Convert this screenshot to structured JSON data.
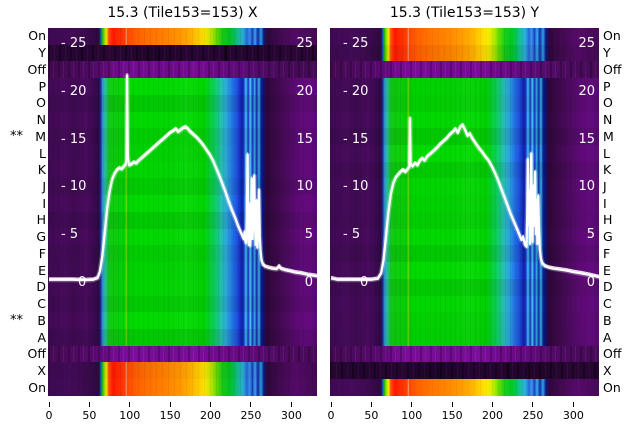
{
  "figure": {
    "background": "#ffffff"
  },
  "panels": [
    {
      "title": "15.3 (Tile153=153) X",
      "row_types": [
        "bright",
        "dark",
        "off",
        "body",
        "body",
        "body",
        "body",
        "body",
        "body",
        "body",
        "body",
        "body",
        "body",
        "body",
        "body",
        "body",
        "body",
        "body",
        "body",
        "off",
        "bright",
        "bright"
      ]
    },
    {
      "title": "15.3 (Tile153=153) Y",
      "row_types": [
        "bright",
        "bright",
        "off",
        "body",
        "body",
        "body",
        "body",
        "body",
        "body",
        "body",
        "body",
        "body",
        "body",
        "body",
        "body",
        "body",
        "body",
        "body",
        "body",
        "off",
        "dark",
        "bright"
      ]
    }
  ],
  "row_labels": [
    "On",
    "Y",
    "Off",
    "P",
    "O",
    "N",
    "M",
    "L",
    "K",
    "J",
    "I",
    "H",
    "G",
    "F",
    "E",
    "D",
    "C",
    "B",
    "A",
    "Off",
    "X",
    "On"
  ],
  "starred_rows": [
    6,
    17
  ],
  "star_symbol": "**",
  "axes": {
    "y_ticks": [
      25,
      20,
      15,
      10,
      5,
      0
    ],
    "x_ticks": [
      0,
      50,
      100,
      150,
      200,
      250,
      300
    ],
    "x_range": [
      0,
      333
    ],
    "y_range": [
      -12,
      26.5
    ]
  },
  "colors": {
    "curve": "#ffffff",
    "text": "#000000",
    "tick_text_inner": "#ffffff",
    "cmap_low": "#2a0735",
    "cmap_mid_purple": "#700b8e",
    "cmap_blue": "#1b47d6",
    "cmap_green": "#00cc00",
    "cmap_yellow": "#ffcc00",
    "cmap_high_red": "#ff1800"
  },
  "chart_data": {
    "type": "heatmap",
    "x_range": [
      0,
      333
    ],
    "y_range": [
      -12,
      26.5
    ],
    "x_ticks": [
      0,
      50,
      100,
      150,
      200,
      250,
      300
    ],
    "y_ticks": [
      25,
      20,
      15,
      10,
      5,
      0
    ],
    "rows_top_to_bottom": [
      "On",
      "Y",
      "Off",
      "P",
      "O",
      "N",
      "M",
      "L",
      "K",
      "J",
      "I",
      "H",
      "G",
      "F",
      "E",
      "D",
      "C",
      "B",
      "A",
      "Off",
      "X",
      "On"
    ],
    "panels": [
      {
        "title": "15.3 (Tile153=153) X",
        "bright_rows": [
          "On(top)",
          "X(bottom)",
          "On(bottom)"
        ],
        "curve_points": [
          [
            0,
            0.35
          ],
          [
            30,
            0.35
          ],
          [
            45,
            0.3
          ],
          [
            55,
            0.35
          ],
          [
            60,
            0.5
          ],
          [
            63,
            1.2
          ],
          [
            66,
            2.8
          ],
          [
            69,
            5.2
          ],
          [
            72,
            7.8
          ],
          [
            75,
            9.6
          ],
          [
            78,
            10.8
          ],
          [
            81,
            11.4
          ],
          [
            84,
            11.8
          ],
          [
            87,
            12.0
          ],
          [
            90,
            11.9
          ],
          [
            93,
            12.2
          ],
          [
            95,
            12.4
          ],
          [
            96,
            13.0
          ],
          [
            96.7,
            21.7
          ],
          [
            97.5,
            13.2
          ],
          [
            99,
            12.3
          ],
          [
            102,
            12.4
          ],
          [
            105,
            12.6
          ],
          [
            108,
            12.5
          ],
          [
            111,
            12.8
          ],
          [
            114,
            13.0
          ],
          [
            118,
            13.3
          ],
          [
            122,
            13.6
          ],
          [
            126,
            13.9
          ],
          [
            130,
            14.2
          ],
          [
            134,
            14.5
          ],
          [
            138,
            14.8
          ],
          [
            142,
            15.1
          ],
          [
            146,
            15.4
          ],
          [
            150,
            15.7
          ],
          [
            154,
            15.9
          ],
          [
            157,
            16.1
          ],
          [
            160,
            15.8
          ],
          [
            163,
            16.0
          ],
          [
            166,
            16.2
          ],
          [
            169,
            16.3
          ],
          [
            172,
            16.1
          ],
          [
            175,
            15.8
          ],
          [
            179,
            15.5
          ],
          [
            183,
            15.2
          ],
          [
            187,
            14.8
          ],
          [
            191,
            14.4
          ],
          [
            195,
            13.9
          ],
          [
            199,
            13.4
          ],
          [
            203,
            12.8
          ],
          [
            207,
            12.0
          ],
          [
            211,
            11.2
          ],
          [
            215,
            10.3
          ],
          [
            219,
            9.4
          ],
          [
            223,
            8.4
          ],
          [
            227,
            7.5
          ],
          [
            231,
            6.7
          ],
          [
            234,
            6.0
          ],
          [
            237,
            5.4
          ],
          [
            239,
            5.0
          ],
          [
            241,
            4.6
          ],
          [
            242,
            5.3
          ],
          [
            243,
            4.4
          ],
          [
            244,
            4.2
          ],
          [
            245,
            6.5
          ],
          [
            245.8,
            13.4
          ],
          [
            246.6,
            5.5
          ],
          [
            247.4,
            4.0
          ],
          [
            248.2,
            8.2
          ],
          [
            249,
            3.9
          ],
          [
            250,
            5.2
          ],
          [
            251,
            10.9
          ],
          [
            252,
            4.6
          ],
          [
            253,
            7.8
          ],
          [
            254,
            11.2
          ],
          [
            255,
            6.2
          ],
          [
            256,
            4.0
          ],
          [
            257,
            8.6
          ],
          [
            258,
            3.7
          ],
          [
            259,
            6.3
          ],
          [
            260,
            9.7
          ],
          [
            261,
            4.9
          ],
          [
            262,
            3.3
          ],
          [
            263,
            2.4
          ],
          [
            265,
            1.9
          ],
          [
            268,
            1.7
          ],
          [
            272,
            1.6
          ],
          [
            277,
            1.5
          ],
          [
            282,
            1.45
          ],
          [
            285,
            1.75
          ],
          [
            287,
            1.5
          ],
          [
            292,
            1.35
          ],
          [
            298,
            1.25
          ],
          [
            305,
            1.1
          ],
          [
            313,
            1.0
          ],
          [
            321,
            0.85
          ],
          [
            333,
            0.7
          ]
        ]
      },
      {
        "title": "15.3 (Tile153=153) Y",
        "bright_rows": [
          "On(top)",
          "Y(top)",
          "On(bottom)"
        ],
        "curve_points": [
          [
            0,
            0.5
          ],
          [
            8,
            0.35
          ],
          [
            30,
            0.35
          ],
          [
            50,
            0.35
          ],
          [
            58,
            0.45
          ],
          [
            62,
            1.0
          ],
          [
            65,
            2.4
          ],
          [
            68,
            4.8
          ],
          [
            71,
            7.4
          ],
          [
            74,
            9.3
          ],
          [
            77,
            10.4
          ],
          [
            80,
            11.0
          ],
          [
            83,
            11.3
          ],
          [
            86,
            11.6
          ],
          [
            89,
            11.8
          ],
          [
            92,
            11.6
          ],
          [
            95,
            11.9
          ],
          [
            97,
            12.1
          ],
          [
            97.8,
            17.2
          ],
          [
            98.6,
            12.4
          ],
          [
            101,
            12.2
          ],
          [
            104,
            12.5
          ],
          [
            107,
            12.3
          ],
          [
            110,
            12.8
          ],
          [
            113,
            13.0
          ],
          [
            116,
            12.8
          ],
          [
            119,
            13.2
          ],
          [
            123,
            13.5
          ],
          [
            127,
            13.8
          ],
          [
            131,
            14.1
          ],
          [
            135,
            14.5
          ],
          [
            139,
            14.8
          ],
          [
            143,
            15.1
          ],
          [
            147,
            15.5
          ],
          [
            151,
            15.8
          ],
          [
            154,
            16.1
          ],
          [
            157,
            15.7
          ],
          [
            160,
            16.3
          ],
          [
            163,
            16.5
          ],
          [
            166,
            16.0
          ],
          [
            169,
            15.4
          ],
          [
            172,
            15.6
          ],
          [
            175,
            15.1
          ],
          [
            179,
            14.6
          ],
          [
            183,
            14.1
          ],
          [
            187,
            13.7
          ],
          [
            191,
            13.2
          ],
          [
            195,
            12.8
          ],
          [
            199,
            12.2
          ],
          [
            203,
            11.5
          ],
          [
            207,
            10.7
          ],
          [
            211,
            9.8
          ],
          [
            215,
            8.9
          ],
          [
            219,
            8.0
          ],
          [
            223,
            7.1
          ],
          [
            227,
            6.3
          ],
          [
            231,
            5.5
          ],
          [
            234,
            4.9
          ],
          [
            236,
            4.5
          ],
          [
            238,
            4.8
          ],
          [
            240,
            4.0
          ],
          [
            242,
            3.8
          ],
          [
            243,
            7.6
          ],
          [
            243.8,
            12.9
          ],
          [
            244.6,
            6.1
          ],
          [
            245.4,
            9.6
          ],
          [
            246.2,
            4.1
          ],
          [
            247,
            7.0
          ],
          [
            247.8,
            13.5
          ],
          [
            248.6,
            8.1
          ],
          [
            249.4,
            4.3
          ],
          [
            250.5,
            10.1
          ],
          [
            251.5,
            6.0
          ],
          [
            252.5,
            11.6
          ],
          [
            253.5,
            5.1
          ],
          [
            254.5,
            8.6
          ],
          [
            255.5,
            4.1
          ],
          [
            256.5,
            9.1
          ],
          [
            257.5,
            5.6
          ],
          [
            258.5,
            3.5
          ],
          [
            260,
            2.5
          ],
          [
            262,
            2.0
          ],
          [
            265,
            1.75
          ],
          [
            270,
            1.6
          ],
          [
            276,
            1.5
          ],
          [
            284,
            1.4
          ],
          [
            292,
            1.3
          ],
          [
            300,
            1.15
          ],
          [
            310,
            1.0
          ],
          [
            320,
            0.85
          ],
          [
            333,
            0.6
          ]
        ]
      }
    ]
  }
}
